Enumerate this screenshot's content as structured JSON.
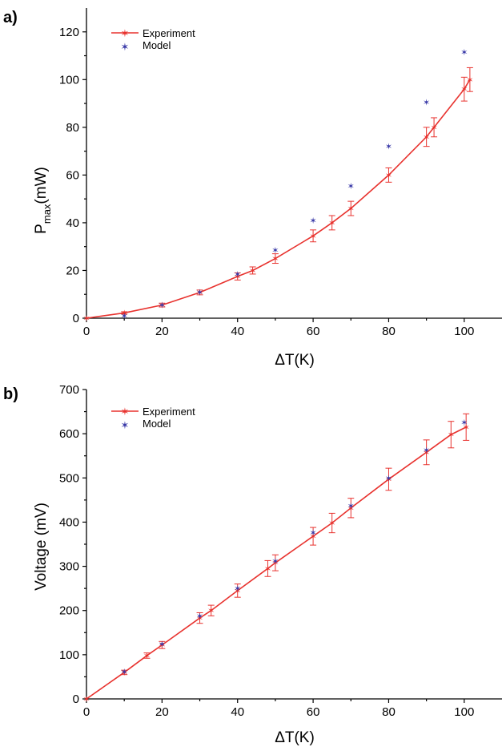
{
  "chart_data": [
    {
      "type": "line",
      "panel_label": "a)",
      "xlabel": "ΔT(K)",
      "ylabel_main": "P",
      "ylabel_sub": "max",
      "ylabel_unit": "(mW)",
      "xlim": [
        0,
        110
      ],
      "ylim": [
        0,
        130
      ],
      "xticks": [
        0,
        20,
        40,
        60,
        80,
        100
      ],
      "yticks": [
        0,
        20,
        40,
        60,
        80,
        100,
        120
      ],
      "legend_position": "top-left",
      "grid": false,
      "colors": {
        "experiment": "#e8322e",
        "model": "#3a3aa8"
      },
      "series": [
        {
          "name": "Experiment",
          "style": "line-with-markers-and-errorbars",
          "points": [
            {
              "x": 0,
              "y": 0,
              "err": 0
            },
            {
              "x": 10,
              "y": 2.2,
              "err": 0.5
            },
            {
              "x": 20,
              "y": 5.5,
              "err": 0.8
            },
            {
              "x": 30,
              "y": 10.8,
              "err": 1
            },
            {
              "x": 40,
              "y": 17.5,
              "err": 1.5
            },
            {
              "x": 44,
              "y": 20,
              "err": 1.5
            },
            {
              "x": 50,
              "y": 25,
              "err": 2
            },
            {
              "x": 60,
              "y": 34.5,
              "err": 2.5
            },
            {
              "x": 65,
              "y": 40,
              "err": 3
            },
            {
              "x": 70,
              "y": 46,
              "err": 3
            },
            {
              "x": 80,
              "y": 60,
              "err": 3
            },
            {
              "x": 90,
              "y": 76,
              "err": 4
            },
            {
              "x": 92,
              "y": 80,
              "err": 4
            },
            {
              "x": 100,
              "y": 96,
              "err": 5
            },
            {
              "x": 101.5,
              "y": 100,
              "err": 5
            }
          ]
        },
        {
          "name": "Model",
          "style": "markers",
          "points": [
            {
              "x": 10,
              "y": 1
            },
            {
              "x": 20,
              "y": 5.5
            },
            {
              "x": 30,
              "y": 11
            },
            {
              "x": 40,
              "y": 18.5
            },
            {
              "x": 50,
              "y": 28.5
            },
            {
              "x": 60,
              "y": 41
            },
            {
              "x": 70,
              "y": 55.5
            },
            {
              "x": 80,
              "y": 72
            },
            {
              "x": 90,
              "y": 90.5
            },
            {
              "x": 100,
              "y": 111.5
            }
          ]
        }
      ]
    },
    {
      "type": "line",
      "panel_label": "b)",
      "xlabel": "ΔT(K)",
      "ylabel_main": "Voltage (mV)",
      "ylabel_sub": "",
      "ylabel_unit": "",
      "xlim": [
        0,
        110
      ],
      "ylim": [
        0,
        700
      ],
      "xticks": [
        0,
        20,
        40,
        60,
        80,
        100
      ],
      "yticks": [
        0,
        100,
        200,
        300,
        400,
        500,
        600,
        700
      ],
      "legend_position": "top-left",
      "grid": false,
      "colors": {
        "experiment": "#e8322e",
        "model": "#3a3aa8"
      },
      "series": [
        {
          "name": "Experiment",
          "style": "line-with-markers-and-errorbars",
          "points": [
            {
              "x": 0,
              "y": 0,
              "err": 0
            },
            {
              "x": 10,
              "y": 60,
              "err": 5
            },
            {
              "x": 16,
              "y": 98,
              "err": 6
            },
            {
              "x": 20,
              "y": 122,
              "err": 8
            },
            {
              "x": 30,
              "y": 183,
              "err": 12
            },
            {
              "x": 33,
              "y": 200,
              "err": 12
            },
            {
              "x": 40,
              "y": 245,
              "err": 15
            },
            {
              "x": 48,
              "y": 295,
              "err": 18
            },
            {
              "x": 50,
              "y": 308,
              "err": 18
            },
            {
              "x": 60,
              "y": 368,
              "err": 20
            },
            {
              "x": 65,
              "y": 398,
              "err": 22
            },
            {
              "x": 70,
              "y": 432,
              "err": 22
            },
            {
              "x": 80,
              "y": 497,
              "err": 25
            },
            {
              "x": 90,
              "y": 558,
              "err": 28
            },
            {
              "x": 96.5,
              "y": 598,
              "err": 30
            },
            {
              "x": 100.5,
              "y": 615,
              "err": 30
            }
          ]
        },
        {
          "name": "Model",
          "style": "markers",
          "points": [
            {
              "x": 10,
              "y": 62
            },
            {
              "x": 20,
              "y": 124
            },
            {
              "x": 30,
              "y": 188
            },
            {
              "x": 40,
              "y": 250
            },
            {
              "x": 50,
              "y": 312
            },
            {
              "x": 60,
              "y": 376
            },
            {
              "x": 70,
              "y": 437
            },
            {
              "x": 80,
              "y": 500
            },
            {
              "x": 90,
              "y": 563
            },
            {
              "x": 100,
              "y": 626
            }
          ]
        }
      ]
    }
  ]
}
